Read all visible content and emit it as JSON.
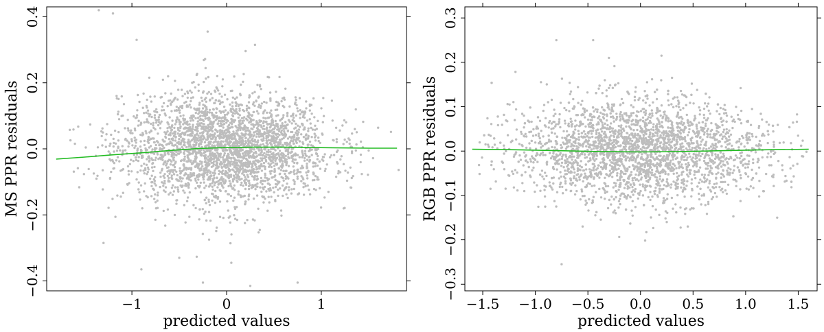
{
  "colors": {
    "points": "#bdbdbd",
    "smooth_line": "#22bb22",
    "axes": "#000000"
  },
  "chart_data": [
    {
      "type": "scatter",
      "title": "",
      "xlabel": "predicted values",
      "ylabel": "MS PPR residuals",
      "xlim": [
        -1.9,
        1.9
      ],
      "ylim": [
        -0.43,
        0.43
      ],
      "xticks": [
        -1,
        0,
        1
      ],
      "xtick_labels": [
        "−1",
        "0",
        "1"
      ],
      "yticks": [
        -0.4,
        -0.2,
        0.0,
        0.2,
        0.4
      ],
      "ytick_labels": [
        "−0.4",
        "−0.2",
        "0.0",
        "0.2",
        "0.4"
      ],
      "grid": false,
      "legend": "none",
      "points": {
        "approx_count": 3000,
        "x_center": 0.0,
        "x_spread": 0.55,
        "y_center": 0.0,
        "y_spread": 0.085,
        "outliers": [
          [
            -1.35,
            0.42
          ],
          [
            -1.2,
            0.41
          ],
          [
            -0.95,
            0.33
          ],
          [
            -0.2,
            0.355
          ],
          [
            0.3,
            0.315
          ],
          [
            -0.9,
            -0.365
          ],
          [
            0.05,
            -0.345
          ],
          [
            0.75,
            -0.405
          ],
          [
            0.25,
            -0.415
          ],
          [
            -0.25,
            -0.405
          ],
          [
            -1.3,
            -0.285
          ],
          [
            -0.5,
            -0.33
          ]
        ]
      },
      "series": [
        {
          "type": "line",
          "x": [
            -1.8,
            -1.5,
            -1.2,
            -0.9,
            -0.6,
            -0.3,
            0.0,
            0.3,
            0.6,
            0.9,
            1.2,
            1.5,
            1.8
          ],
          "y": [
            -0.031,
            -0.025,
            -0.018,
            -0.012,
            -0.005,
            0.001,
            0.004,
            0.005,
            0.005,
            0.004,
            0.003,
            0.002,
            0.002
          ]
        }
      ]
    },
    {
      "type": "scatter",
      "title": "",
      "xlabel": "predicted values",
      "ylabel": "RGB PPR residuals",
      "xlim": [
        -1.67,
        1.68
      ],
      "ylim": [
        -0.315,
        0.325
      ],
      "xticks": [
        -1.5,
        -1.0,
        -0.5,
        0.0,
        0.5,
        1.0,
        1.5
      ],
      "xtick_labels": [
        "−1.5",
        "−1.0",
        "−0.5",
        "0.0",
        "0.5",
        "1.0",
        "1.5"
      ],
      "yticks": [
        -0.3,
        -0.2,
        -0.1,
        0.0,
        0.1,
        0.2,
        0.3
      ],
      "ytick_labels": [
        "−0.3",
        "−0.2",
        "−0.1",
        "0.0",
        "0.1",
        "0.2",
        "0.3"
      ],
      "grid": false,
      "legend": "none",
      "points": {
        "approx_count": 3000,
        "x_center": 0.0,
        "x_spread": 0.6,
        "y_center": 0.0,
        "y_spread": 0.06,
        "outliers": [
          [
            -0.8,
            0.25
          ],
          [
            -0.45,
            0.25
          ],
          [
            -0.3,
            0.21
          ],
          [
            0.2,
            0.215
          ],
          [
            0.3,
            0.165
          ],
          [
            -0.75,
            -0.255
          ],
          [
            0.25,
            -0.16
          ],
          [
            0.45,
            -0.17
          ],
          [
            -0.55,
            -0.17
          ],
          [
            1.3,
            -0.15
          ]
        ]
      },
      "series": [
        {
          "type": "line",
          "x": [
            -1.6,
            -1.2,
            -0.8,
            -0.4,
            0.0,
            0.4,
            0.8,
            1.2,
            1.6
          ],
          "y": [
            0.004,
            0.003,
            0.001,
            -0.001,
            -0.002,
            -0.001,
            0.001,
            0.003,
            0.004
          ]
        }
      ]
    }
  ]
}
